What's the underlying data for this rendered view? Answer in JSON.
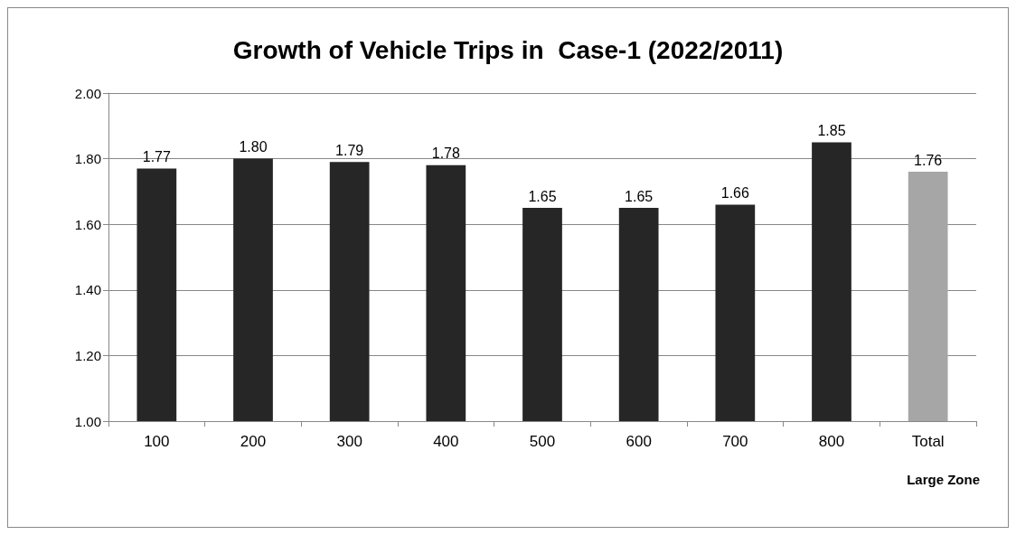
{
  "chart_data": {
    "type": "bar",
    "title": "Growth of Vehicle Trips in  Case-1 (2022/2011)",
    "xlabel": "Large Zone",
    "categories": [
      "100",
      "200",
      "300",
      "400",
      "500",
      "600",
      "700",
      "800",
      "Total"
    ],
    "values": [
      1.77,
      1.8,
      1.79,
      1.78,
      1.65,
      1.65,
      1.66,
      1.85,
      1.76
    ],
    "colors": [
      "#262626",
      "#262626",
      "#262626",
      "#262626",
      "#262626",
      "#262626",
      "#262626",
      "#262626",
      "#a6a6a6"
    ],
    "value_labels": [
      "1.77",
      "1.80",
      "1.79",
      "1.78",
      "1.65",
      "1.65",
      "1.66",
      "1.85",
      "1.76"
    ],
    "ylim": [
      1,
      2
    ],
    "yticks": [
      {
        "value": 1,
        "label": "1.00"
      },
      {
        "value": 1.2,
        "label": "1.20"
      },
      {
        "value": 1.4,
        "label": "1.40"
      },
      {
        "value": 1.6,
        "label": "1.60"
      },
      {
        "value": 1.8,
        "label": "1.80"
      },
      {
        "value": 2,
        "label": "2.00"
      }
    ],
    "grid": "y"
  }
}
